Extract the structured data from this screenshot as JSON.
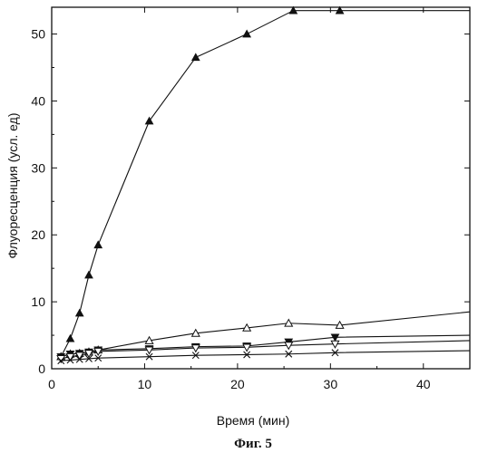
{
  "figure": {
    "caption": "Фиг. 5"
  },
  "chart_data": {
    "type": "line",
    "title": "",
    "xlabel": "Время (мин)",
    "ylabel": "Флуоресценция (усл. ед)",
    "xlim": [
      0,
      45
    ],
    "ylim": [
      0,
      54
    ],
    "xticks": [
      0,
      10,
      20,
      30,
      40
    ],
    "yticks": [
      0,
      10,
      20,
      30,
      40,
      50
    ],
    "grid": false,
    "legend": "none",
    "series": [
      {
        "marker": "filled-triangle-up",
        "color": "#111111",
        "x": [
          1,
          2,
          3,
          4,
          5,
          10.5,
          15.5,
          21,
          26,
          31,
          45
        ],
        "y": [
          1.8,
          4.5,
          8.3,
          14,
          18.5,
          37,
          46.5,
          50,
          53.5,
          53.5,
          53.5
        ]
      },
      {
        "marker": "open-triangle-up",
        "color": "#111111",
        "x": [
          1,
          2,
          3,
          4,
          5,
          10.5,
          15.5,
          21,
          25.5,
          31,
          45
        ],
        "y": [
          1.8,
          2.2,
          2.3,
          2.5,
          2.8,
          4.2,
          5.3,
          6.1,
          6.8,
          6.5,
          8.5
        ]
      },
      {
        "marker": "filled-triangle-down",
        "color": "#111111",
        "x": [
          1,
          2,
          3,
          4,
          5,
          10.5,
          15.5,
          21,
          25.5,
          30.5,
          45
        ],
        "y": [
          1.8,
          2.2,
          2.3,
          2.5,
          2.8,
          3.0,
          3.3,
          3.4,
          4.0,
          4.7,
          5.0
        ]
      },
      {
        "marker": "open-triangle-down",
        "color": "#111111",
        "x": [
          1,
          2,
          3,
          4,
          5,
          10.5,
          15.5,
          21,
          25.5,
          30.5,
          45
        ],
        "y": [
          1.5,
          1.8,
          2.0,
          2.3,
          2.6,
          2.8,
          3.1,
          3.2,
          3.5,
          3.7,
          4.2
        ]
      },
      {
        "marker": "x",
        "color": "#111111",
        "x": [
          1,
          2,
          3,
          4,
          5,
          10.5,
          15.5,
          21,
          25.5,
          30.5,
          45
        ],
        "y": [
          1.2,
          1.3,
          1.4,
          1.5,
          1.6,
          1.8,
          2.0,
          2.1,
          2.2,
          2.4,
          2.7
        ]
      }
    ]
  }
}
